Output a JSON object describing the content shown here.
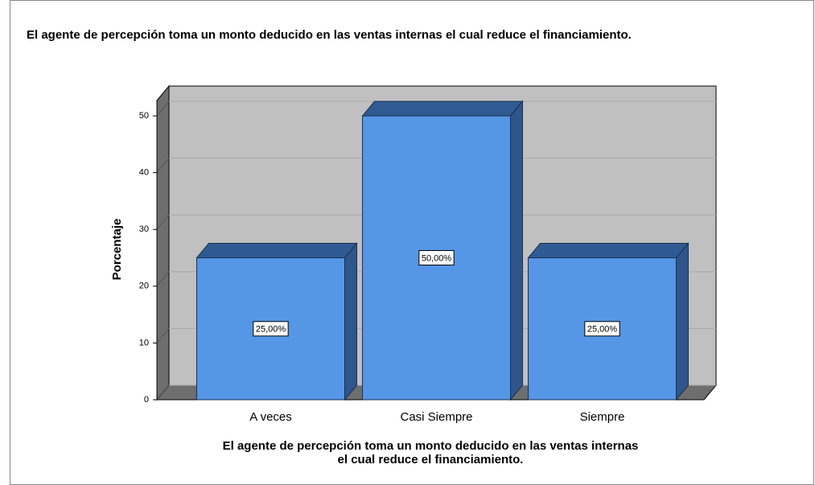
{
  "chart_data": {
    "type": "bar3d",
    "title": "El agente de percepción  toma un monto deducido en las ventas internas el cual reduce el financiamiento.",
    "xlabel": [
      "El agente de percepción  toma un monto deducido en las ventas internas",
      "el cual reduce el financiamiento."
    ],
    "ylabel": "Porcentaje",
    "categories": [
      "A veces",
      "Casi Siempre",
      "Siempre"
    ],
    "values": [
      25,
      50,
      25
    ],
    "value_labels": [
      "25,00%",
      "50,00%",
      "25,00%"
    ],
    "color": "#5596e6",
    "ylim": [
      0,
      52.7
    ],
    "yticks": [
      0,
      10,
      20,
      30,
      40,
      50
    ],
    "grid": true
  }
}
